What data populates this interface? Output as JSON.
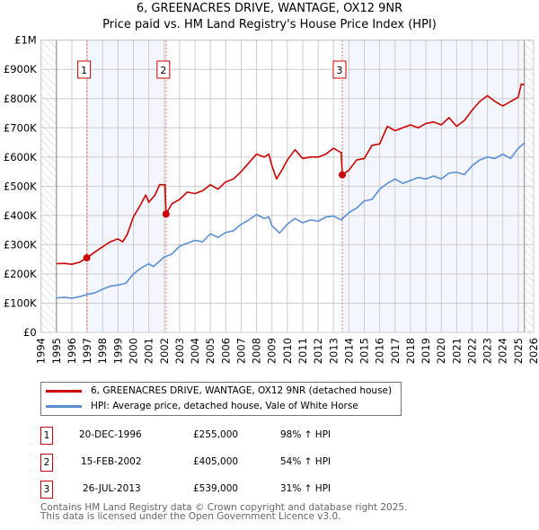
{
  "chart_data": {
    "type": "line",
    "title": "6, GREENACRES DRIVE, WANTAGE, OX12 9NR",
    "subtitle": "Price paid vs. HM Land Registry's House Price Index (HPI)",
    "xlim": [
      1994,
      2026
    ],
    "ylim": [
      0,
      1000000
    ],
    "x_ticks": [
      "1994",
      "1995",
      "1996",
      "1997",
      "1998",
      "1999",
      "2000",
      "2001",
      "2002",
      "2003",
      "2004",
      "2005",
      "2006",
      "2007",
      "2008",
      "2009",
      "2010",
      "2011",
      "2012",
      "2013",
      "2014",
      "2015",
      "2016",
      "2017",
      "2018",
      "2019",
      "2020",
      "2021",
      "2022",
      "2023",
      "2024",
      "2025",
      "2026"
    ],
    "y_ticks": [
      {
        "value": 0,
        "label": "£0"
      },
      {
        "value": 100000,
        "label": "£100K"
      },
      {
        "value": 200000,
        "label": "£200K"
      },
      {
        "value": 300000,
        "label": "£300K"
      },
      {
        "value": 400000,
        "label": "£400K"
      },
      {
        "value": 500000,
        "label": "£500K"
      },
      {
        "value": 600000,
        "label": "£600K"
      },
      {
        "value": 700000,
        "label": "£700K"
      },
      {
        "value": 800000,
        "label": "£800K"
      },
      {
        "value": 900000,
        "label": "£900K"
      },
      {
        "value": 1000000,
        "label": "£1M"
      }
    ],
    "grid": true,
    "data_range": [
      1995,
      2025.4
    ],
    "series": [
      {
        "name": "6, GREENACRES DRIVE, WANTAGE, OX12 9NR (detached house)",
        "color": "#cc0000",
        "points": [
          [
            1995,
            235000
          ],
          [
            1995.5,
            236000
          ],
          [
            1996,
            233000
          ],
          [
            1996.5,
            240000
          ],
          [
            1996.97,
            255000
          ],
          [
            1997.5,
            275000
          ],
          [
            1998,
            293000
          ],
          [
            1998.5,
            310000
          ],
          [
            1999,
            320000
          ],
          [
            1999.3,
            310000
          ],
          [
            1999.6,
            335000
          ],
          [
            2000,
            395000
          ],
          [
            2000.5,
            440000
          ],
          [
            2000.8,
            470000
          ],
          [
            2001,
            445000
          ],
          [
            2001.4,
            470000
          ],
          [
            2001.7,
            505000
          ],
          [
            2002.05,
            505000
          ],
          [
            2002.12,
            405000
          ],
          [
            2002.5,
            440000
          ],
          [
            2003,
            455000
          ],
          [
            2003.5,
            480000
          ],
          [
            2004,
            475000
          ],
          [
            2004.5,
            485000
          ],
          [
            2005,
            505000
          ],
          [
            2005.5,
            490000
          ],
          [
            2006,
            515000
          ],
          [
            2006.5,
            525000
          ],
          [
            2007,
            550000
          ],
          [
            2007.5,
            580000
          ],
          [
            2008,
            610000
          ],
          [
            2008.5,
            600000
          ],
          [
            2008.8,
            610000
          ],
          [
            2009,
            570000
          ],
          [
            2009.3,
            525000
          ],
          [
            2009.7,
            560000
          ],
          [
            2010,
            590000
          ],
          [
            2010.5,
            625000
          ],
          [
            2011,
            595000
          ],
          [
            2011.5,
            600000
          ],
          [
            2012,
            600000
          ],
          [
            2012.5,
            610000
          ],
          [
            2013,
            630000
          ],
          [
            2013.5,
            615000
          ],
          [
            2013.57,
            539000
          ],
          [
            2014,
            555000
          ],
          [
            2014.5,
            590000
          ],
          [
            2015,
            595000
          ],
          [
            2015.5,
            640000
          ],
          [
            2016,
            645000
          ],
          [
            2016.5,
            705000
          ],
          [
            2017,
            690000
          ],
          [
            2017.5,
            700000
          ],
          [
            2018,
            710000
          ],
          [
            2018.5,
            700000
          ],
          [
            2019,
            715000
          ],
          [
            2019.5,
            720000
          ],
          [
            2020,
            710000
          ],
          [
            2020.5,
            735000
          ],
          [
            2021,
            705000
          ],
          [
            2021.5,
            725000
          ],
          [
            2022,
            760000
          ],
          [
            2022.5,
            790000
          ],
          [
            2023,
            810000
          ],
          [
            2023.5,
            790000
          ],
          [
            2024,
            775000
          ],
          [
            2024.5,
            790000
          ],
          [
            2025,
            805000
          ],
          [
            2025.2,
            850000
          ],
          [
            2025.4,
            847000
          ]
        ]
      },
      {
        "name": "HPI: Average price, detached house, Vale of White Horse",
        "color": "#5b8fd4",
        "points": [
          [
            1995,
            118000
          ],
          [
            1995.5,
            120000
          ],
          [
            1996,
            117000
          ],
          [
            1996.5,
            122000
          ],
          [
            1997,
            130000
          ],
          [
            1997.5,
            135000
          ],
          [
            1998,
            148000
          ],
          [
            1998.5,
            158000
          ],
          [
            1999,
            162000
          ],
          [
            1999.5,
            168000
          ],
          [
            2000,
            200000
          ],
          [
            2000.5,
            220000
          ],
          [
            2001,
            235000
          ],
          [
            2001.3,
            225000
          ],
          [
            2002,
            258000
          ],
          [
            2002.5,
            268000
          ],
          [
            2003,
            295000
          ],
          [
            2003.5,
            305000
          ],
          [
            2004,
            315000
          ],
          [
            2004.5,
            310000
          ],
          [
            2005,
            337000
          ],
          [
            2005.5,
            325000
          ],
          [
            2006,
            342000
          ],
          [
            2006.5,
            348000
          ],
          [
            2007,
            370000
          ],
          [
            2007.5,
            385000
          ],
          [
            2008,
            403000
          ],
          [
            2008.5,
            390000
          ],
          [
            2008.8,
            395000
          ],
          [
            2009,
            365000
          ],
          [
            2009.5,
            340000
          ],
          [
            2010,
            370000
          ],
          [
            2010.5,
            390000
          ],
          [
            2011,
            375000
          ],
          [
            2011.5,
            385000
          ],
          [
            2012,
            380000
          ],
          [
            2012.5,
            395000
          ],
          [
            2013,
            398000
          ],
          [
            2013.5,
            385000
          ],
          [
            2014,
            410000
          ],
          [
            2014.5,
            425000
          ],
          [
            2015,
            450000
          ],
          [
            2015.5,
            455000
          ],
          [
            2016,
            490000
          ],
          [
            2016.5,
            510000
          ],
          [
            2017,
            525000
          ],
          [
            2017.5,
            510000
          ],
          [
            2018,
            520000
          ],
          [
            2018.5,
            530000
          ],
          [
            2019,
            525000
          ],
          [
            2019.5,
            535000
          ],
          [
            2020,
            525000
          ],
          [
            2020.5,
            545000
          ],
          [
            2021,
            548000
          ],
          [
            2021.5,
            540000
          ],
          [
            2022,
            570000
          ],
          [
            2022.5,
            590000
          ],
          [
            2023,
            600000
          ],
          [
            2023.5,
            595000
          ],
          [
            2024,
            610000
          ],
          [
            2024.5,
            595000
          ],
          [
            2025,
            630000
          ],
          [
            2025.4,
            648000
          ]
        ]
      }
    ],
    "sales": [
      {
        "num": "1",
        "x": 1996.97,
        "value": 255000,
        "date": "20-DEC-1996",
        "price": "£255,000",
        "hpi": "98% ↑ HPI"
      },
      {
        "num": "2",
        "x": 2002.12,
        "value": 405000,
        "date": "15-FEB-2002",
        "price": "£405,000",
        "hpi": "54% ↑ HPI"
      },
      {
        "num": "3",
        "x": 2013.57,
        "value": 539000,
        "date": "26-JUL-2013",
        "price": "£539,000",
        "hpi": "31% ↑ HPI"
      }
    ],
    "legend": "below"
  },
  "footer": {
    "line1": "Contains HM Land Registry data © Crown copyright and database right 2025.",
    "line2": "This data is licensed under the Open Government Licence v3.0."
  }
}
